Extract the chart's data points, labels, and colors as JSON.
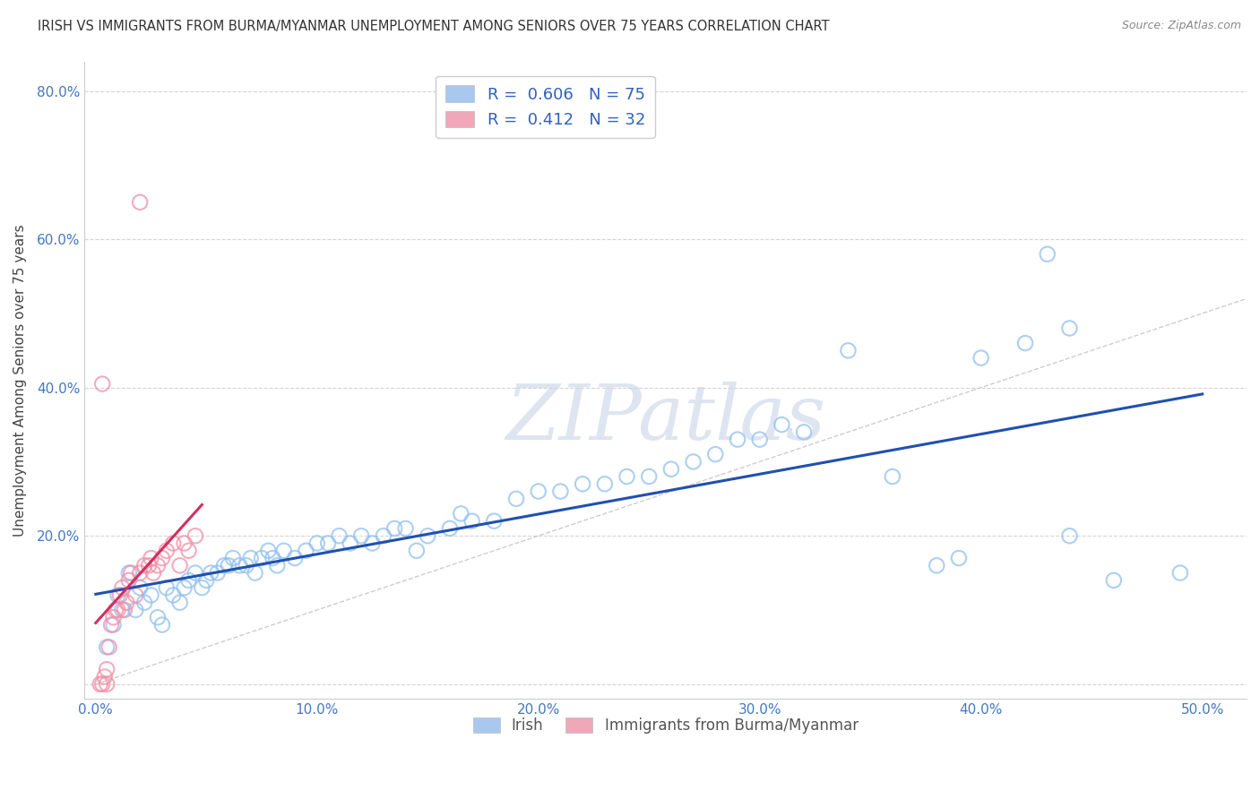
{
  "title": "IRISH VS IMMIGRANTS FROM BURMA/MYANMAR UNEMPLOYMENT AMONG SENIORS OVER 75 YEARS CORRELATION CHART",
  "source": "Source: ZipAtlas.com",
  "ylabel": "Unemployment Among Seniors over 75 years",
  "xlim": [
    -0.005,
    0.52
  ],
  "ylim": [
    -0.02,
    0.84
  ],
  "xticks": [
    0.0,
    0.1,
    0.2,
    0.3,
    0.4,
    0.5
  ],
  "yticks": [
    0.0,
    0.2,
    0.4,
    0.6,
    0.8
  ],
  "irish_color": "#90c0f0",
  "burma_color": "#f090a8",
  "irish_line_color": "#2050b0",
  "burma_line_color": "#d03060",
  "ref_line_color": "#c8c8c8",
  "legend1_color": "#a8c8f0",
  "legend2_color": "#f0a8b8",
  "watermark": "ZIPatlas",
  "watermark_color": "#c8d4e8",
  "irish_R": 0.606,
  "irish_N": 75,
  "burma_R": 0.412,
  "burma_N": 32,
  "irish_x": [
    0.005,
    0.008,
    0.01,
    0.012,
    0.015,
    0.018,
    0.02,
    0.022,
    0.025,
    0.028,
    0.03,
    0.032,
    0.035,
    0.038,
    0.04,
    0.042,
    0.045,
    0.048,
    0.05,
    0.052,
    0.055,
    0.058,
    0.06,
    0.062,
    0.065,
    0.068,
    0.07,
    0.072,
    0.075,
    0.078,
    0.08,
    0.082,
    0.085,
    0.09,
    0.095,
    0.1,
    0.105,
    0.11,
    0.115,
    0.12,
    0.125,
    0.13,
    0.135,
    0.14,
    0.145,
    0.15,
    0.16,
    0.165,
    0.17,
    0.18,
    0.19,
    0.2,
    0.21,
    0.22,
    0.23,
    0.24,
    0.25,
    0.26,
    0.27,
    0.28,
    0.29,
    0.3,
    0.32,
    0.34,
    0.38,
    0.4,
    0.42,
    0.44,
    0.36,
    0.31,
    0.39,
    0.43,
    0.44,
    0.46,
    0.49
  ],
  "irish_y": [
    0.05,
    0.08,
    0.12,
    0.1,
    0.15,
    0.1,
    0.13,
    0.11,
    0.12,
    0.09,
    0.08,
    0.13,
    0.12,
    0.11,
    0.13,
    0.14,
    0.15,
    0.13,
    0.14,
    0.15,
    0.15,
    0.16,
    0.16,
    0.17,
    0.16,
    0.16,
    0.17,
    0.15,
    0.17,
    0.18,
    0.17,
    0.16,
    0.18,
    0.17,
    0.18,
    0.19,
    0.19,
    0.2,
    0.19,
    0.2,
    0.19,
    0.2,
    0.21,
    0.21,
    0.18,
    0.2,
    0.21,
    0.23,
    0.22,
    0.22,
    0.25,
    0.26,
    0.26,
    0.27,
    0.27,
    0.28,
    0.28,
    0.29,
    0.3,
    0.31,
    0.33,
    0.33,
    0.34,
    0.45,
    0.16,
    0.44,
    0.46,
    0.2,
    0.28,
    0.35,
    0.17,
    0.58,
    0.48,
    0.14,
    0.15
  ],
  "burma_x": [
    0.002,
    0.003,
    0.004,
    0.005,
    0.006,
    0.007,
    0.008,
    0.009,
    0.01,
    0.011,
    0.012,
    0.013,
    0.014,
    0.015,
    0.016,
    0.018,
    0.02,
    0.022,
    0.024,
    0.025,
    0.026,
    0.028,
    0.03,
    0.032,
    0.035,
    0.038,
    0.04,
    0.042,
    0.045,
    0.003,
    0.005,
    0.02
  ],
  "burma_y": [
    0.0,
    0.405,
    0.01,
    0.02,
    0.05,
    0.08,
    0.09,
    0.1,
    0.1,
    0.12,
    0.13,
    0.1,
    0.11,
    0.14,
    0.15,
    0.12,
    0.15,
    0.16,
    0.16,
    0.17,
    0.15,
    0.16,
    0.17,
    0.18,
    0.19,
    0.16,
    0.19,
    0.18,
    0.2,
    0.0,
    0.0,
    0.65
  ]
}
